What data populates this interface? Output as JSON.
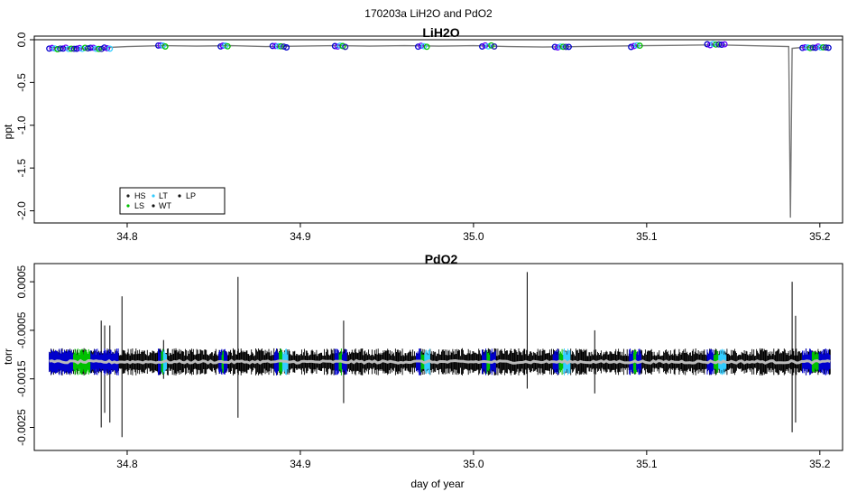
{
  "suptitle": "170203a   LiH2O and PdO2",
  "colors": {
    "HS": "#222222",
    "LS": "#00c000",
    "LT": "#33ccff",
    "WT": "#111111",
    "LP": "#111111",
    "blue": "#0000cc",
    "grey": "#aaaaaa"
  },
  "chart_data": [
    {
      "type": "scatter",
      "title": "LiH2O",
      "xlabel": "",
      "ylabel": "ppt",
      "xlim": [
        34.75,
        35.21
      ],
      "ylim": [
        -2.1,
        0.0
      ],
      "x_ticks": [
        34.8,
        34.9,
        35.0,
        35.1,
        35.2
      ],
      "x_tick_labels": [
        "34.8",
        "34.9",
        "35.0",
        "35.1",
        "35.2"
      ],
      "y_ticks": [
        0.0,
        -0.5,
        -1.0,
        -1.5,
        -2.0
      ],
      "y_tick_labels": [
        "0.0",
        "-0.5",
        "-1.0",
        "-1.5",
        "-2.0"
      ],
      "hline": 0.0,
      "legend": {
        "position": "bottom-left",
        "entries": [
          {
            "label": "HS",
            "color": "#222222"
          },
          {
            "label": "LT",
            "color": "#33ccff"
          },
          {
            "label": "LP",
            "color": "#111111"
          },
          {
            "label": "LS",
            "color": "#00c000"
          },
          {
            "label": "WT",
            "color": "#111111"
          }
        ]
      },
      "trace": {
        "x": [
          34.755,
          34.77,
          34.785,
          34.79,
          34.8,
          34.82,
          34.84,
          34.86,
          34.88,
          34.9,
          34.92,
          34.94,
          34.96,
          34.98,
          35.0,
          35.02,
          35.04,
          35.06,
          35.08,
          35.1,
          35.12,
          35.14,
          35.16,
          35.182,
          35.183,
          35.184,
          35.19,
          35.205
        ],
        "y": [
          -0.09,
          -0.1,
          -0.11,
          -0.09,
          -0.08,
          -0.07,
          -0.075,
          -0.07,
          -0.08,
          -0.075,
          -0.07,
          -0.075,
          -0.07,
          -0.075,
          -0.07,
          -0.08,
          -0.085,
          -0.08,
          -0.075,
          -0.07,
          -0.065,
          -0.06,
          -0.07,
          -0.08,
          -2.08,
          -0.1,
          -0.09,
          -0.09
        ]
      },
      "marker_groups": [
        {
          "x_start": 34.755,
          "x_end": 34.79,
          "y": -0.1
        },
        {
          "x_start": 34.818,
          "x_end": 34.822,
          "y": -0.07
        },
        {
          "x_start": 34.854,
          "x_end": 34.858,
          "y": -0.07
        },
        {
          "x_start": 34.884,
          "x_end": 34.892,
          "y": -0.08
        },
        {
          "x_start": 34.92,
          "x_end": 34.926,
          "y": -0.075
        },
        {
          "x_start": 34.968,
          "x_end": 34.973,
          "y": -0.075
        },
        {
          "x_start": 35.005,
          "x_end": 35.012,
          "y": -0.075
        },
        {
          "x_start": 35.047,
          "x_end": 35.055,
          "y": -0.085
        },
        {
          "x_start": 35.091,
          "x_end": 35.096,
          "y": -0.075
        },
        {
          "x_start": 35.135,
          "x_end": 35.145,
          "y": -0.06
        },
        {
          "x_start": 35.19,
          "x_end": 35.205,
          "y": -0.09
        }
      ]
    },
    {
      "type": "line",
      "title": "PdO2",
      "xlabel": "day of year",
      "ylabel": "torr",
      "xlim": [
        34.75,
        35.21
      ],
      "ylim": [
        -0.0029,
        0.0008
      ],
      "x_ticks": [
        34.8,
        34.9,
        35.0,
        35.1,
        35.2
      ],
      "x_tick_labels": [
        "34.8",
        "34.9",
        "35.0",
        "35.1",
        "35.2"
      ],
      "y_ticks": [
        0.0005,
        -0.0005,
        -0.0015,
        -0.0025
      ],
      "y_tick_labels": [
        "0.0005",
        "-0.0005",
        "-0.0015",
        "-0.0025"
      ],
      "baseline": -0.00115,
      "noise_amplitude": 0.0002,
      "colored_segments": [
        {
          "x_start": 34.755,
          "x_end": 34.795
        },
        {
          "x_start": 34.818,
          "x_end": 34.823
        },
        {
          "x_start": 34.853,
          "x_end": 34.858
        },
        {
          "x_start": 34.885,
          "x_end": 34.893
        },
        {
          "x_start": 34.92,
          "x_end": 34.927
        },
        {
          "x_start": 34.967,
          "x_end": 34.975
        },
        {
          "x_start": 35.005,
          "x_end": 35.013
        },
        {
          "x_start": 35.046,
          "x_end": 35.056
        },
        {
          "x_start": 35.09,
          "x_end": 35.097
        },
        {
          "x_start": 35.135,
          "x_end": 35.146
        },
        {
          "x_start": 35.19,
          "x_end": 35.206
        }
      ],
      "spikes": [
        {
          "x": 34.785,
          "y_top": -0.0003,
          "y_bottom": -0.0025
        },
        {
          "x": 34.787,
          "y_top": -0.0004,
          "y_bottom": -0.0022
        },
        {
          "x": 34.79,
          "y_top": -0.0004,
          "y_bottom": -0.0024
        },
        {
          "x": 34.797,
          "y_top": 0.0002,
          "y_bottom": -0.0027
        },
        {
          "x": 34.821,
          "y_top": -0.0007,
          "y_bottom": -0.0015
        },
        {
          "x": 34.864,
          "y_top": 0.0006,
          "y_bottom": -0.0023
        },
        {
          "x": 34.925,
          "y_top": -0.0003,
          "y_bottom": -0.002
        },
        {
          "x": 35.031,
          "y_top": 0.0007,
          "y_bottom": -0.0017
        },
        {
          "x": 35.07,
          "y_top": -0.0005,
          "y_bottom": -0.0018
        },
        {
          "x": 35.184,
          "y_top": 0.0005,
          "y_bottom": -0.0026
        },
        {
          "x": 35.186,
          "y_top": -0.0002,
          "y_bottom": -0.0024
        }
      ]
    }
  ]
}
